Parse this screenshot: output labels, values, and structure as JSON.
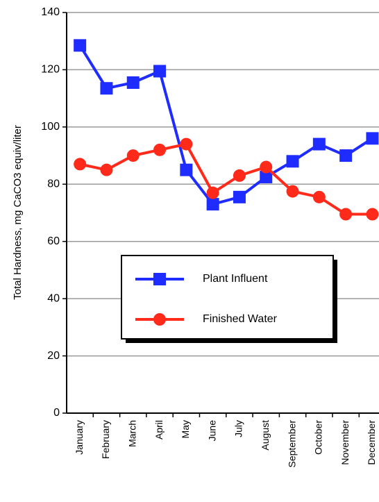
{
  "chart_data": {
    "type": "line",
    "ylabel": "Total Hardness, mg CaCO3  equiv/liter",
    "categories": [
      "January",
      "February",
      "March",
      "April",
      "May",
      "June",
      "July",
      "August",
      "September",
      "October",
      "November",
      "December"
    ],
    "series": [
      {
        "name": "Plant Influent",
        "color": "#1f2cff",
        "marker": "square",
        "values": [
          128.5,
          113.5,
          115.5,
          119.5,
          85,
          73,
          75.5,
          82.5,
          88,
          94,
          90,
          96
        ]
      },
      {
        "name": "Finished Water",
        "color": "#ff2a1a",
        "marker": "circle",
        "values": [
          87,
          85,
          90,
          92,
          94,
          77,
          83,
          86,
          77.5,
          75.5,
          69.5,
          69.5
        ]
      }
    ],
    "ylim": [
      0,
      140
    ],
    "yticks": [
      0,
      20,
      40,
      60,
      80,
      100,
      120,
      140
    ],
    "grid": true
  }
}
